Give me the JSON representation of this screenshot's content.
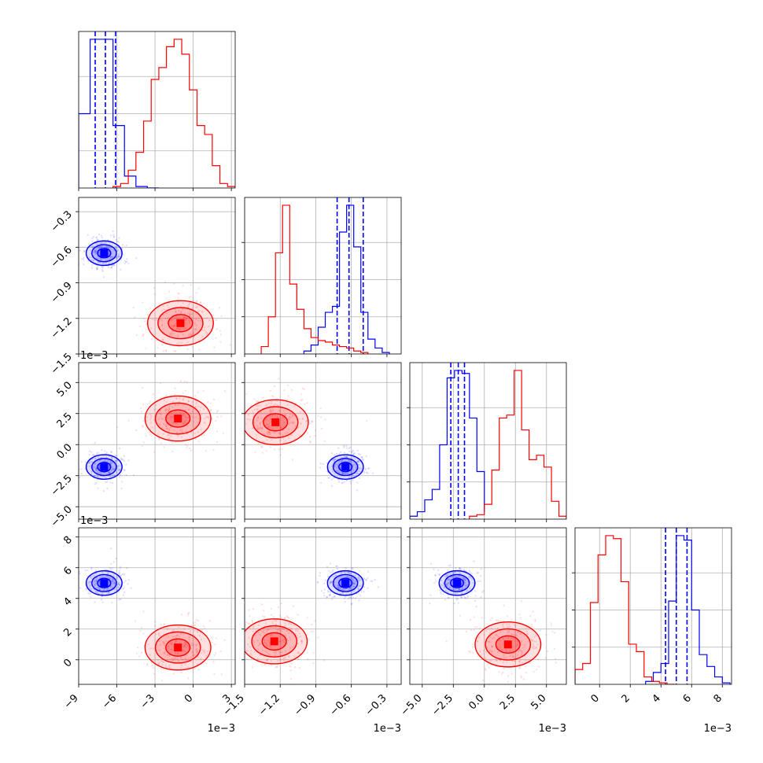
{
  "chart_data": {
    "type": "corner",
    "parameters": [
      "p0",
      "p1",
      "p2",
      "p3"
    ],
    "series": [
      {
        "name": "",
        "color": "#0000ff",
        "quantiles": [
          [
            -0.0077,
            -0.0069,
            -0.0061
          ],
          [
            -0.00072,
            -0.00062,
            -0.0005
          ],
          [
            -0.0027,
            -0.0021,
            -0.0016
          ],
          [
            0.0043,
            0.005,
            0.0057
          ]
        ],
        "hist": [
          {
            "bins": [
              -0.009,
              -0.0081,
              -0.0072,
              -0.0063,
              -0.0054,
              -0.0045,
              -0.0036,
              -0.0027
            ],
            "counts": [
              0.5,
              1.0,
              1.0,
              0.42,
              0.08,
              0.01,
              0
            ]
          },
          {
            "bins": [
              -0.001,
              -0.00094,
              -0.00088,
              -0.00082,
              -0.00076,
              -0.0007,
              -0.00064,
              -0.00058,
              -0.00052,
              -0.00046,
              -0.0004,
              -0.00034,
              -0.00028
            ],
            "counts": [
              0.02,
              0.06,
              0.18,
              0.28,
              0.32,
              0.82,
              1.0,
              0.72,
              0.28,
              0.1,
              0.04,
              0.01
            ]
          },
          {
            "bins": [
              -0.006,
              -0.0054,
              -0.0048,
              -0.0042,
              -0.0036,
              -0.003,
              -0.0024,
              -0.0018,
              -0.0012,
              -0.0006,
              0.0
            ],
            "counts": [
              0.02,
              0.05,
              0.13,
              0.2,
              0.5,
              0.95,
              1.0,
              0.98,
              0.68,
              0.32,
              0.05
            ]
          },
          {
            "bins": [
              0.003,
              0.0035,
              0.004,
              0.0045,
              0.005,
              0.0055,
              0.006,
              0.0065,
              0.007,
              0.0075,
              0.008,
              0.0085
            ],
            "counts": [
              0.02,
              0.08,
              0.14,
              0.56,
              1.0,
              0.97,
              0.5,
              0.2,
              0.12,
              0.05,
              0.01
            ]
          }
        ],
        "centers": [
          [
            -0.007,
            -0.00065
          ],
          [
            -0.007,
            -0.0018
          ],
          [
            -0.00065,
            -0.0018
          ],
          [
            -0.007,
            0.005
          ],
          [
            -0.00065,
            0.005
          ],
          [
            -0.0022,
            0.005
          ]
        ]
      },
      {
        "name": "",
        "color": "#ff0000",
        "quantiles": [],
        "hist": [
          {
            "bins": [
              -0.0063,
              -0.0057,
              -0.0051,
              -0.0045,
              -0.0039,
              -0.0033,
              -0.0027,
              -0.0021,
              -0.0015,
              -0.0009,
              -0.0003,
              0.0003,
              0.0009,
              0.0015,
              0.0021,
              0.0027,
              0.0033
            ],
            "counts": [
              0.01,
              0.03,
              0.12,
              0.24,
              0.45,
              0.73,
              0.81,
              0.95,
              1.0,
              0.9,
              0.66,
              0.42,
              0.36,
              0.15,
              0.03,
              0.01
            ]
          },
          {
            "bins": [
              -0.00136,
              -0.0013,
              -0.00124,
              -0.00118,
              -0.00112,
              -0.00106,
              -0.001,
              -0.00094,
              -0.00088,
              -0.00082,
              -0.00076,
              -0.0007,
              -0.00064,
              -0.00058,
              -0.00052,
              -0.00046
            ],
            "counts": [
              0.05,
              0.25,
              0.68,
              1.0,
              0.47,
              0.3,
              0.17,
              0.11,
              0.09,
              0.08,
              0.06,
              0.05,
              0.04,
              0.02,
              0.01
            ]
          },
          {
            "bins": [
              -0.0012,
              -0.0006,
              0.0,
              0.0006,
              0.0012,
              0.0018,
              0.0024,
              0.003,
              0.0036,
              0.0042,
              0.0048,
              0.0054,
              0.006,
              0.0066
            ],
            "counts": [
              0.02,
              0.03,
              0.1,
              0.33,
              0.68,
              0.7,
              1.0,
              0.6,
              0.4,
              0.43,
              0.35,
              0.12,
              0.02
            ]
          },
          {
            "bins": [
              -0.0016,
              -0.0011,
              -0.0006,
              -0.0001,
              0.0004,
              0.0009,
              0.0014,
              0.0019,
              0.0024,
              0.0029,
              0.0034,
              0.0039,
              0.0044,
              0.0049
            ],
            "counts": [
              0.1,
              0.14,
              0.55,
              0.87,
              1.0,
              0.98,
              0.69,
              0.27,
              0.22,
              0.05,
              0.02,
              0.01,
              0
            ]
          }
        ],
        "centers": [
          [
            -0.001,
            -0.00124
          ],
          [
            -0.0012,
            0.0021
          ],
          [
            -0.00124,
            0.0018
          ],
          [
            -0.0012,
            0.0008
          ],
          [
            -0.00125,
            0.0012
          ],
          [
            0.0019,
            0.001
          ]
        ]
      }
    ],
    "axes": [
      {
        "ticks": [
          -9,
          -6,
          -3,
          0,
          3
        ],
        "tick_labels": [
          "−9",
          "−6",
          "−3",
          "0",
          "3"
        ],
        "range": [
          -9.0,
          3.3
        ],
        "scale": 0.001
      },
      {
        "ticks": [
          -1.5,
          -1.2,
          -0.9,
          -0.6,
          -0.3
        ],
        "tick_labels": [
          "−1.5",
          "−1.2",
          "−0.9",
          "−0.6",
          "−0.3"
        ],
        "range": [
          -1.5,
          -0.18
        ],
        "scale": 0.001
      },
      {
        "ticks": [
          -5,
          -2.5,
          0,
          2.5,
          5
        ],
        "tick_labels": [
          "−5.0",
          "−2.5",
          "0.0",
          "2.5",
          "5.0"
        ],
        "range": [
          -6.0,
          6.6
        ],
        "scale": 0.001
      },
      {
        "ticks": [
          0,
          2,
          4,
          6,
          8
        ],
        "tick_labels": [
          "0",
          "2",
          "4",
          "6",
          "8"
        ],
        "range": [
          -1.6,
          8.6
        ],
        "scale": 0.001
      }
    ],
    "offset_label": "1e−3",
    "grid": true
  }
}
